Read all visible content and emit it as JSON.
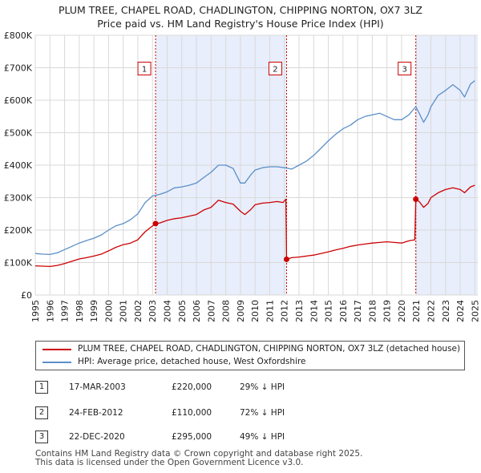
{
  "chart_data": {
    "type": "line",
    "title": "PLUM TREE, CHAPEL ROAD, CHADLINGTON, CHIPPING NORTON, OX7 3LZ",
    "subtitle": "Price paid vs. HM Land Registry's House Price Index (HPI)",
    "xlim": [
      1995,
      2025.2
    ],
    "ylim": [
      0,
      800000
    ],
    "x_ticks": [
      1995,
      1996,
      1997,
      1998,
      1999,
      2000,
      2001,
      2002,
      2003,
      2004,
      2005,
      2006,
      2007,
      2008,
      2009,
      2010,
      2011,
      2012,
      2013,
      2014,
      2015,
      2016,
      2017,
      2018,
      2019,
      2020,
      2021,
      2022,
      2023,
      2024,
      2025
    ],
    "y_ticks": [
      {
        "value": 0,
        "label": "£0"
      },
      {
        "value": 100000,
        "label": "£100K"
      },
      {
        "value": 200000,
        "label": "£200K"
      },
      {
        "value": 300000,
        "label": "£300K"
      },
      {
        "value": 400000,
        "label": "£400K"
      },
      {
        "value": 500000,
        "label": "£500K"
      },
      {
        "value": 600000,
        "label": "£600K"
      },
      {
        "value": 700000,
        "label": "£700K"
      },
      {
        "value": 800000,
        "label": "£800K"
      }
    ],
    "series": [
      {
        "name": "PLUM TREE, CHAPEL ROAD, CHADLINGTON, CHIPPING NORTON, OX7 3LZ (detached house)",
        "color": "#cc0000",
        "points": [
          [
            1995.0,
            90000
          ],
          [
            1995.5,
            89000
          ],
          [
            1996.0,
            88000
          ],
          [
            1996.5,
            91000
          ],
          [
            1997.0,
            97000
          ],
          [
            1997.5,
            104000
          ],
          [
            1998.0,
            111000
          ],
          [
            1998.5,
            115000
          ],
          [
            1999.0,
            120000
          ],
          [
            1999.5,
            126000
          ],
          [
            2000.0,
            136000
          ],
          [
            2000.5,
            147000
          ],
          [
            2001.0,
            155000
          ],
          [
            2001.5,
            160000
          ],
          [
            2002.0,
            170000
          ],
          [
            2002.5,
            195000
          ],
          [
            2003.21,
            220000
          ],
          [
            2003.5,
            222000
          ],
          [
            2004.0,
            230000
          ],
          [
            2004.5,
            235000
          ],
          [
            2005.0,
            238000
          ],
          [
            2005.5,
            243000
          ],
          [
            2006.0,
            248000
          ],
          [
            2006.5,
            262000
          ],
          [
            2007.0,
            270000
          ],
          [
            2007.5,
            292000
          ],
          [
            2008.0,
            285000
          ],
          [
            2008.5,
            280000
          ],
          [
            2009.0,
            258000
          ],
          [
            2009.3,
            248000
          ],
          [
            2009.7,
            263000
          ],
          [
            2010.0,
            278000
          ],
          [
            2010.5,
            283000
          ],
          [
            2011.0,
            285000
          ],
          [
            2011.5,
            288000
          ],
          [
            2011.9,
            285000
          ],
          [
            2012.1,
            295000
          ],
          [
            2012.15,
            110000
          ],
          [
            2012.5,
            115000
          ],
          [
            2013.0,
            117000
          ],
          [
            2013.5,
            120000
          ],
          [
            2014.0,
            123000
          ],
          [
            2014.5,
            128000
          ],
          [
            2015.0,
            133000
          ],
          [
            2015.5,
            139000
          ],
          [
            2016.0,
            144000
          ],
          [
            2016.5,
            150000
          ],
          [
            2017.0,
            154000
          ],
          [
            2017.5,
            157000
          ],
          [
            2018.0,
            160000
          ],
          [
            2018.5,
            162000
          ],
          [
            2019.0,
            164000
          ],
          [
            2019.5,
            162000
          ],
          [
            2020.0,
            160000
          ],
          [
            2020.5,
            167000
          ],
          [
            2020.9,
            170000
          ],
          [
            2020.97,
            295000
          ],
          [
            2021.2,
            288000
          ],
          [
            2021.5,
            270000
          ],
          [
            2021.8,
            282000
          ],
          [
            2022.0,
            300000
          ],
          [
            2022.5,
            315000
          ],
          [
            2023.0,
            325000
          ],
          [
            2023.5,
            330000
          ],
          [
            2024.0,
            325000
          ],
          [
            2024.3,
            315000
          ],
          [
            2024.7,
            333000
          ],
          [
            2025.0,
            338000
          ]
        ]
      },
      {
        "name": "HPI: Average price, detached house, West Oxfordshire",
        "color": "#5b8fc9",
        "points": [
          [
            1995.0,
            128000
          ],
          [
            1995.5,
            126000
          ],
          [
            1996.0,
            125000
          ],
          [
            1996.5,
            130000
          ],
          [
            1997.0,
            140000
          ],
          [
            1997.5,
            150000
          ],
          [
            1998.0,
            160000
          ],
          [
            1998.5,
            168000
          ],
          [
            1999.0,
            175000
          ],
          [
            1999.5,
            185000
          ],
          [
            2000.0,
            200000
          ],
          [
            2000.5,
            213000
          ],
          [
            2001.0,
            220000
          ],
          [
            2001.5,
            232000
          ],
          [
            2002.0,
            250000
          ],
          [
            2002.5,
            285000
          ],
          [
            2003.0,
            305000
          ],
          [
            2003.5,
            310000
          ],
          [
            2004.0,
            318000
          ],
          [
            2004.5,
            330000
          ],
          [
            2005.0,
            333000
          ],
          [
            2005.5,
            338000
          ],
          [
            2006.0,
            345000
          ],
          [
            2006.5,
            362000
          ],
          [
            2007.0,
            378000
          ],
          [
            2007.5,
            400000
          ],
          [
            2008.0,
            400000
          ],
          [
            2008.5,
            390000
          ],
          [
            2009.0,
            345000
          ],
          [
            2009.3,
            345000
          ],
          [
            2009.7,
            370000
          ],
          [
            2010.0,
            385000
          ],
          [
            2010.5,
            392000
          ],
          [
            2011.0,
            395000
          ],
          [
            2011.5,
            395000
          ],
          [
            2012.0,
            392000
          ],
          [
            2012.5,
            388000
          ],
          [
            2013.0,
            400000
          ],
          [
            2013.5,
            412000
          ],
          [
            2014.0,
            430000
          ],
          [
            2014.5,
            452000
          ],
          [
            2015.0,
            475000
          ],
          [
            2015.5,
            495000
          ],
          [
            2016.0,
            512000
          ],
          [
            2016.5,
            523000
          ],
          [
            2017.0,
            540000
          ],
          [
            2017.5,
            550000
          ],
          [
            2018.0,
            555000
          ],
          [
            2018.5,
            560000
          ],
          [
            2019.0,
            550000
          ],
          [
            2019.5,
            540000
          ],
          [
            2020.0,
            540000
          ],
          [
            2020.5,
            555000
          ],
          [
            2020.97,
            580000
          ],
          [
            2021.2,
            560000
          ],
          [
            2021.5,
            532000
          ],
          [
            2021.8,
            555000
          ],
          [
            2022.0,
            580000
          ],
          [
            2022.5,
            615000
          ],
          [
            2023.0,
            630000
          ],
          [
            2023.5,
            648000
          ],
          [
            2024.0,
            630000
          ],
          [
            2024.3,
            610000
          ],
          [
            2024.7,
            650000
          ],
          [
            2025.0,
            660000
          ]
        ]
      }
    ],
    "shaded_ranges": [
      [
        2003.21,
        2012.15
      ],
      [
        2020.97,
        2025.2
      ]
    ],
    "transactions": [
      {
        "id": "1",
        "x": 2003.21,
        "y": 220000,
        "date": "17-MAR-2003",
        "price": "£220,000",
        "hpi": "29% ↓ HPI"
      },
      {
        "id": "2",
        "x": 2012.15,
        "y": 110000,
        "date": "24-FEB-2012",
        "price": "£110,000",
        "hpi": "72% ↓ HPI"
      },
      {
        "id": "3",
        "x": 2020.97,
        "y": 295000,
        "date": "22-DEC-2020",
        "price": "£295,000",
        "hpi": "49% ↓ HPI"
      }
    ],
    "marker_label_y": 700000
  },
  "legend": {
    "property": "PLUM TREE, CHAPEL ROAD, CHADLINGTON, CHIPPING NORTON, OX7 3LZ (detached house)",
    "hpi": "HPI: Average price, detached house, West Oxfordshire"
  },
  "footer": {
    "line1": "Contains HM Land Registry data © Crown copyright and database right 2025.",
    "line2": "This data is licensed under the Open Government Licence v3.0."
  },
  "colors": {
    "property": "#cc0000",
    "hpi": "#5b8fc9",
    "shade": "#e8eefb",
    "grid": "#d9d9d9"
  }
}
